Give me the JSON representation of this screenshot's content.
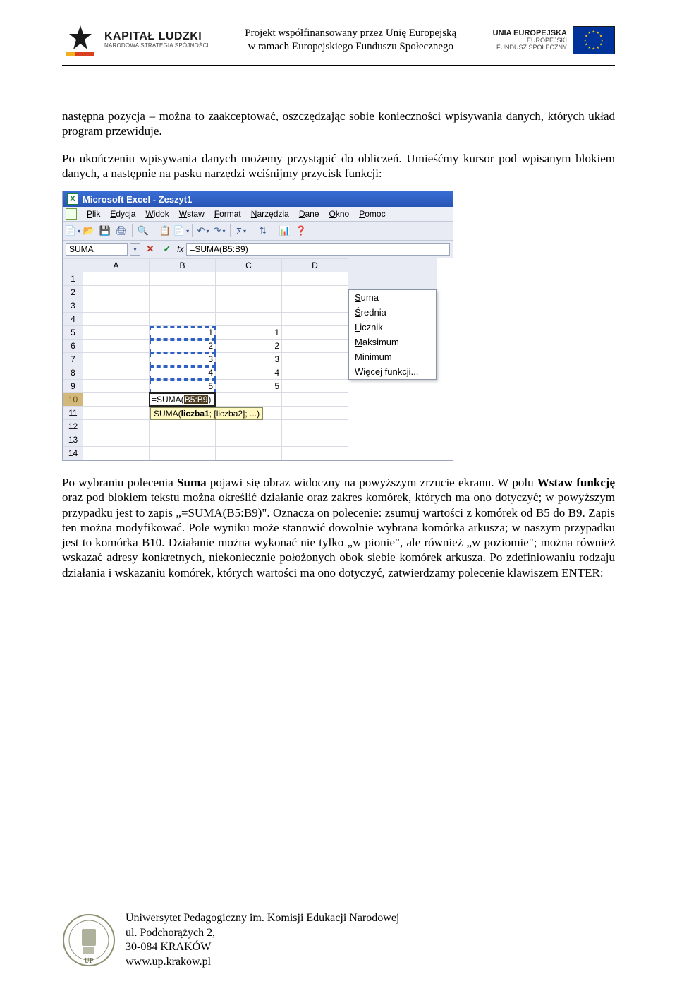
{
  "header": {
    "kl_title": "KAPITAŁ LUDZKI",
    "kl_sub": "NARODOWA STRATEGIA SPÓJNOŚCI",
    "center_line1": "Projekt współfinansowany przez Unię Europejską",
    "center_line2": "w ramach Europejskiego Funduszu Społecznego",
    "eu_line1": "UNIA EUROPEJSKA",
    "eu_line2": "EUROPEJSKI",
    "eu_line3": "FUNDUSZ SPOŁECZNY"
  },
  "body": {
    "p1": "następna pozycja – można to zaakceptować, oszczędzając sobie konieczności wpisywania danych, których układ program przewiduje.",
    "p2": "Po ukończeniu wpisywania danych możemy przystąpić do obliczeń. Umieśćmy kursor pod wpisanym blokiem danych, a następnie na pasku narzędzi wciśnijmy przycisk funkcji:",
    "p3_pre": "Po wybraniu polecenia ",
    "p3_b1": "Suma",
    "p3_mid1": " pojawi się obraz widoczny na powyższym zrzucie ekranu. W polu ",
    "p3_b2": "Wstaw funkcję",
    "p3_mid2": " oraz pod blokiem tekstu można określić działanie oraz zakres komórek, których ma ono dotyczyć; w powyższym przypadku jest to zapis „=SUMA(B5:B9)\". Oznacza on polecenie: zsumuj wartości z komórek od B5 do B9. Zapis ten można modyfikować. Pole wyniku może stanowić dowolnie wybrana komórka arkusza; w naszym przypadku jest to komórka B10. Działanie można wykonać nie tylko „w pionie\", ale również „w poziomie\"; można również wskazać adresy konkretnych, niekoniecznie położonych obok siebie komórek arkusza. Po zdefiniowaniu rodzaju działania i wskazaniu komórek, których wartości ma ono dotyczyć, zatwierdzamy polecenie klawiszem ENTER:"
  },
  "excel": {
    "title": "Microsoft Excel - Zeszyt1",
    "menus": [
      "Plik",
      "Edycja",
      "Widok",
      "Wstaw",
      "Format",
      "Narzędzia",
      "Dane",
      "Okno",
      "Pomoc"
    ],
    "name_box": "SUMA",
    "fx_label": "fx",
    "formula": "=SUMA(B5:B9)",
    "cols": [
      "A",
      "B",
      "C",
      "D"
    ],
    "rows": 14,
    "selected_row": 10,
    "data": {
      "r5": {
        "B": "1",
        "C": "1"
      },
      "r6": {
        "B": "2",
        "C": "2"
      },
      "r7": {
        "B": "3",
        "C": "3"
      },
      "r8": {
        "B": "4",
        "C": "4"
      },
      "r9": {
        "B": "5",
        "C": "5"
      }
    },
    "active_formula_prefix": "=SUMA(",
    "active_formula_range": "B5:B9",
    "active_formula_suffix": ")",
    "tooltip_fn": "SUMA(",
    "tooltip_arg1": "liczba1",
    "tooltip_rest": "; [liczba2]; ...)",
    "dropdown": [
      "Suma",
      "Średnia",
      "Licznik",
      "Maksimum",
      "Minimum",
      "Więcej funkcji..."
    ],
    "toolbar_icons": [
      "📄",
      "📂",
      "💾",
      "🖨",
      "",
      "🔍",
      "",
      "📋",
      "📄",
      "",
      "↶",
      "↷",
      "",
      "Σ",
      "",
      "⇅",
      "",
      "📊",
      "❓"
    ]
  },
  "footer": {
    "line1": "Uniwersytet Pedagogiczny im. Komisji Edukacji Narodowej",
    "line2": "ul. Podchorążych 2,",
    "line3": "30-084 KRAKÓW",
    "line4": "www.up.krakow.pl"
  },
  "colors": {
    "titlebar": "#2855b5",
    "menubar_bg": "#edeff7",
    "grid_border": "#d8dbe3",
    "tooltip_bg": "#fff8c0",
    "sel_range_border": "#3060c0",
    "sel_row_hdr": "#d2b87a"
  }
}
